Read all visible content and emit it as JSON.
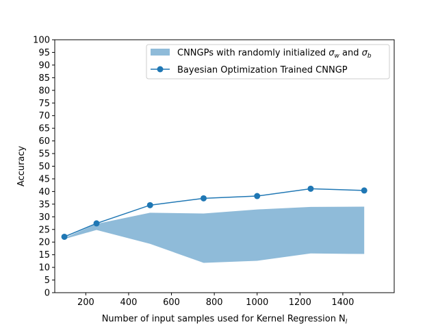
{
  "chart_data": {
    "type": "line",
    "xlabel": "Number of input samples used for Kernel Regression N",
    "xlabel_sub": "l",
    "ylabel": "Accuracy",
    "xlim": [
      55,
      1640
    ],
    "ylim": [
      0,
      100
    ],
    "x_ticks": [
      200,
      400,
      600,
      800,
      1000,
      1200,
      1400
    ],
    "y_ticks": [
      0,
      5,
      10,
      15,
      20,
      25,
      30,
      35,
      40,
      45,
      50,
      55,
      60,
      65,
      70,
      75,
      80,
      85,
      90,
      95,
      100
    ],
    "grid": false,
    "legend_position": "top-right",
    "band": {
      "name": "CNNGPs with randomly initialized σ",
      "name_parts": [
        "CNNGPs with randomly initialized ",
        "σ",
        "w",
        " and ",
        "σ",
        "b"
      ],
      "color": "#8fbbd9",
      "x": [
        100,
        250,
        500,
        750,
        1000,
        1250,
        1500
      ],
      "lower": [
        21.2,
        24.8,
        19.3,
        11.8,
        12.6,
        15.5,
        15.3
      ],
      "upper": [
        21.6,
        27.2,
        31.6,
        31.3,
        32.9,
        33.9,
        34.0
      ]
    },
    "series": [
      {
        "name": "Bayesian Optimization Trained CNNGP",
        "color": "#1f77b4",
        "x": [
          100,
          250,
          500,
          750,
          1000,
          1250,
          1500
        ],
        "y": [
          22.1,
          27.4,
          34.6,
          37.3,
          38.2,
          41.1,
          40.4
        ]
      }
    ]
  }
}
